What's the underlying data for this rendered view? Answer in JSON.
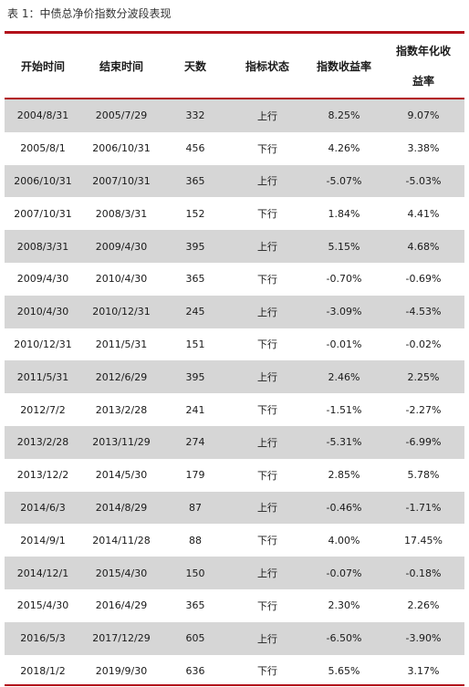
{
  "caption": "表 1：中债总净价指数分波段表现",
  "headers": [
    "开始时间",
    "结束时间",
    "天数",
    "指标状态",
    "指数收益率",
    "指数年化收",
    "益率"
  ],
  "rows": [
    [
      "2004/8/31",
      "2005/7/29",
      "332",
      "上行",
      "8.25%",
      "9.07%"
    ],
    [
      "2005/8/1",
      "2006/10/31",
      "456",
      "下行",
      "4.26%",
      "3.38%"
    ],
    [
      "2006/10/31",
      "2007/10/31",
      "365",
      "上行",
      "-5.07%",
      "-5.03%"
    ],
    [
      "2007/10/31",
      "2008/3/31",
      "152",
      "下行",
      "1.84%",
      "4.41%"
    ],
    [
      "2008/3/31",
      "2009/4/30",
      "395",
      "上行",
      "5.15%",
      "4.68%"
    ],
    [
      "2009/4/30",
      "2010/4/30",
      "365",
      "下行",
      "-0.70%",
      "-0.69%"
    ],
    [
      "2010/4/30",
      "2010/12/31",
      "245",
      "上行",
      "-3.09%",
      "-4.53%"
    ],
    [
      "2010/12/31",
      "2011/5/31",
      "151",
      "下行",
      "-0.01%",
      "-0.02%"
    ],
    [
      "2011/5/31",
      "2012/6/29",
      "395",
      "上行",
      "2.46%",
      "2.25%"
    ],
    [
      "2012/7/2",
      "2013/2/28",
      "241",
      "下行",
      "-1.51%",
      "-2.27%"
    ],
    [
      "2013/2/28",
      "2013/11/29",
      "274",
      "上行",
      "-5.31%",
      "-6.99%"
    ],
    [
      "2013/12/2",
      "2014/5/30",
      "179",
      "下行",
      "2.85%",
      "5.78%"
    ],
    [
      "2014/6/3",
      "2014/8/29",
      "87",
      "上行",
      "-0.46%",
      "-1.71%"
    ],
    [
      "2014/9/1",
      "2014/11/28",
      "88",
      "下行",
      "4.00%",
      "17.45%"
    ],
    [
      "2014/12/1",
      "2015/4/30",
      "150",
      "上行",
      "-0.07%",
      "-0.18%"
    ],
    [
      "2015/4/30",
      "2016/4/29",
      "365",
      "下行",
      "2.30%",
      "2.26%"
    ],
    [
      "2016/5/3",
      "2017/12/29",
      "605",
      "上行",
      "-6.50%",
      "-3.90%"
    ],
    [
      "2018/1/2",
      "2019/9/30",
      "636",
      "下行",
      "5.65%",
      "3.17%"
    ]
  ],
  "colors": {
    "rule": "#b2101a",
    "shade": "#d6d6d6"
  }
}
